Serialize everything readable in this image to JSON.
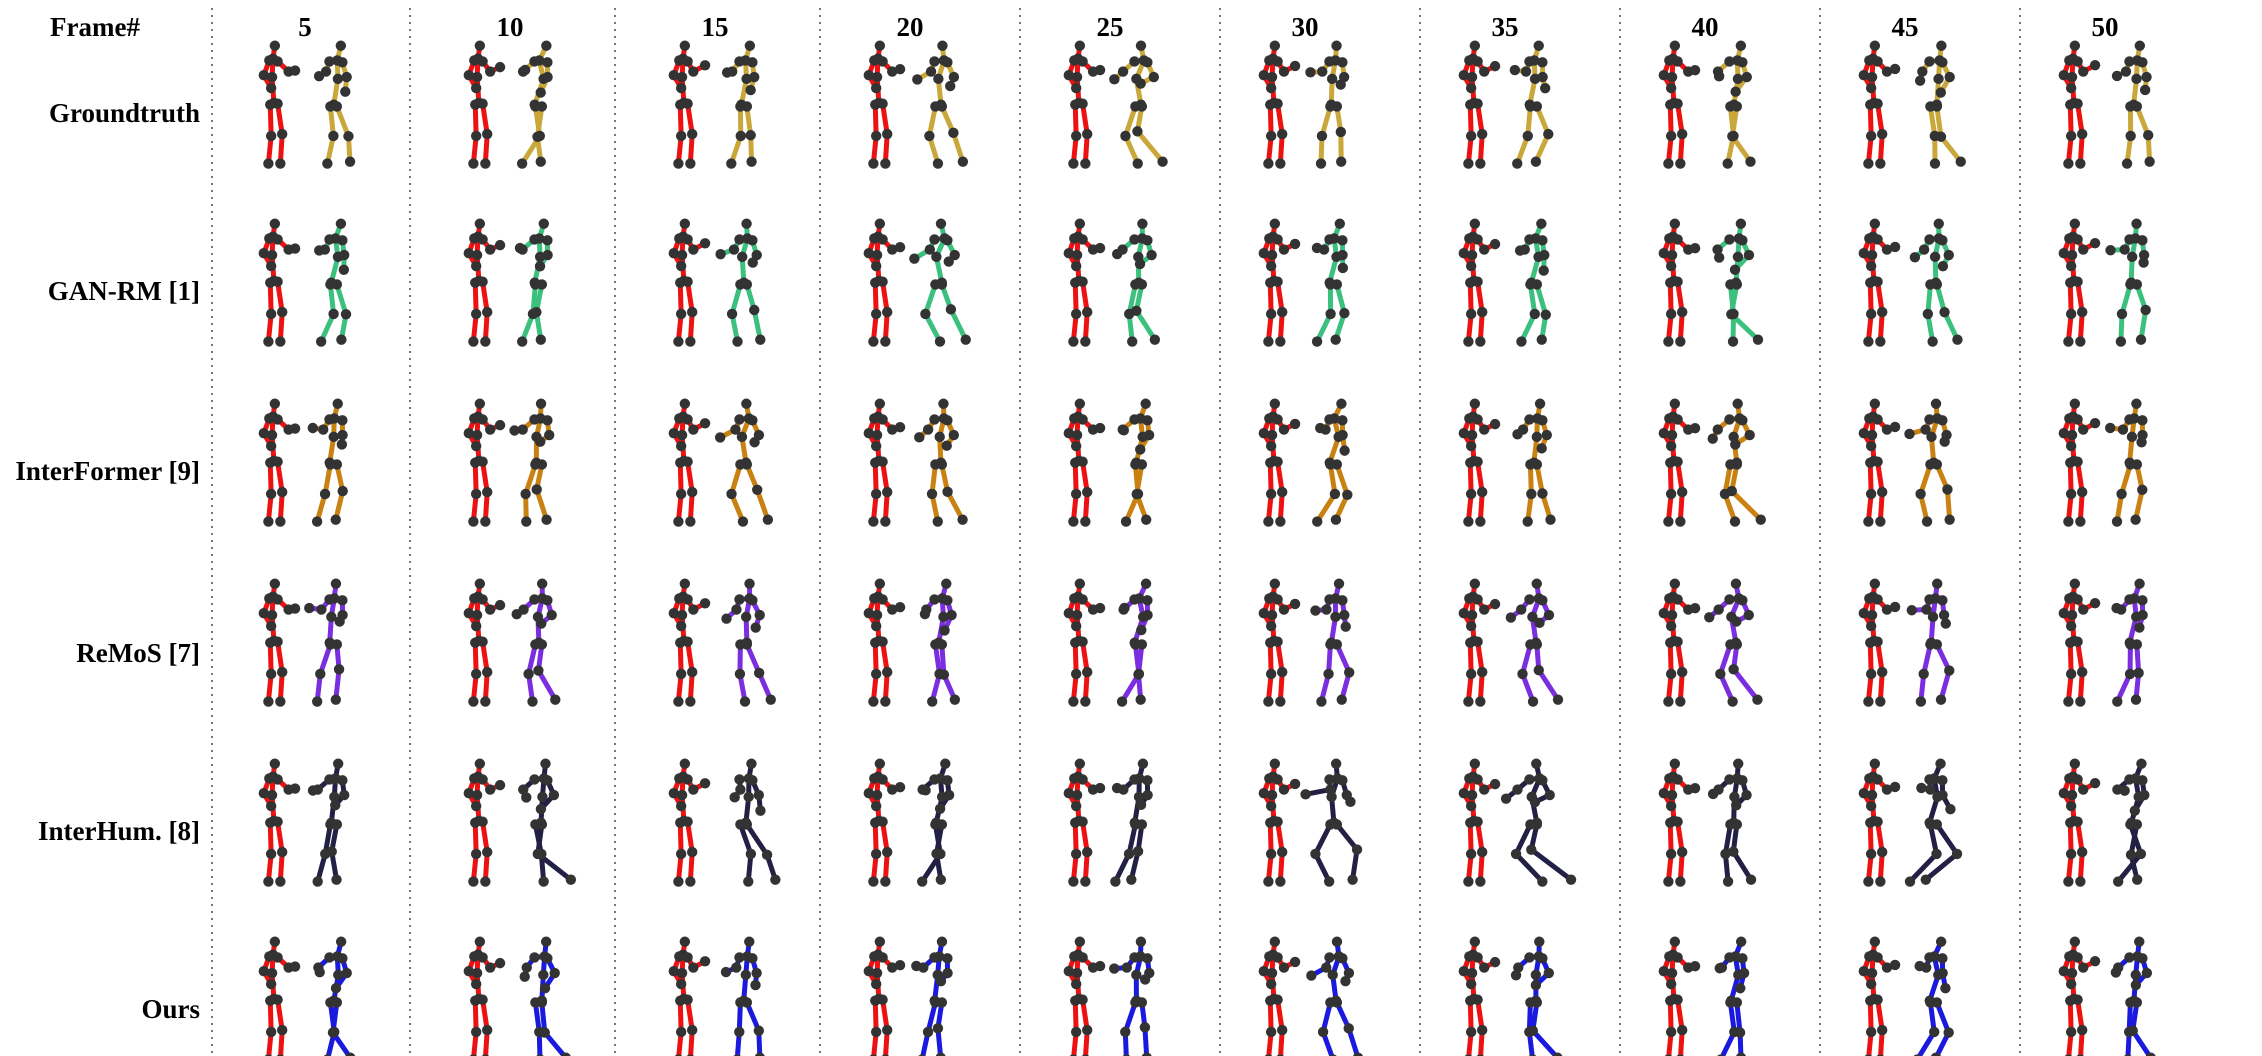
{
  "header_label": "Frame#",
  "frames": [
    "5",
    "10",
    "15",
    "20",
    "25",
    "30",
    "35",
    "40",
    "45",
    "50"
  ],
  "methods": [
    {
      "label": "Groundtruth",
      "color": "#c9a73a"
    },
    {
      "label": "GAN-RM [1]",
      "color": "#3cc07e"
    },
    {
      "label": "InterFormer [9]",
      "color": "#c98212"
    },
    {
      "label": "ReMoS [7]",
      "color": "#7b2ee0"
    },
    {
      "label": "InterHum. [8]",
      "color": "#232046"
    },
    {
      "label": "Ours",
      "color": "#1a1adf"
    }
  ],
  "reference_color": "#ee1111",
  "joint_color": "#333333"
}
